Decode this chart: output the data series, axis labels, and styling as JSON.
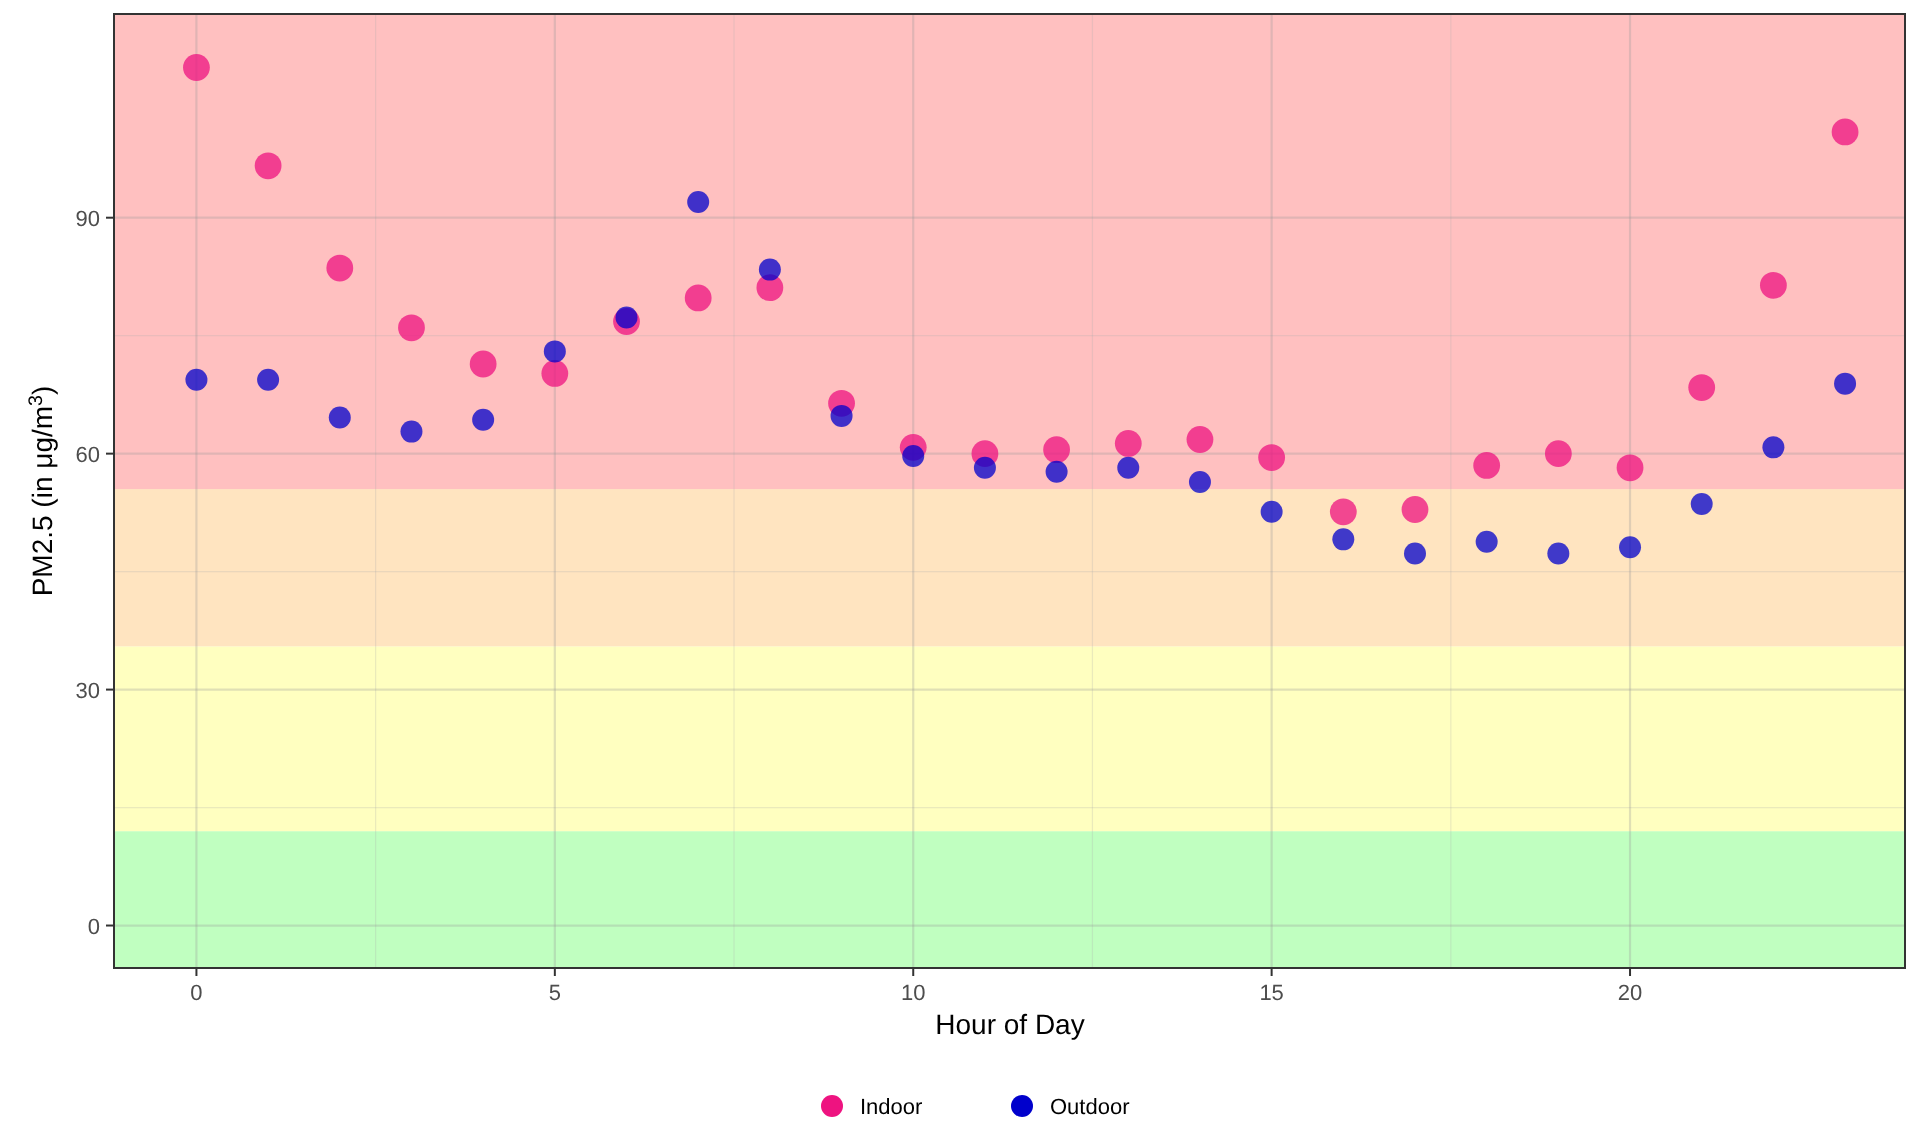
{
  "chart_data": {
    "type": "scatter",
    "xlabel": "Hour of Day",
    "ylabel": "PM2.5 (in μg/m$^{3}$)",
    "x": [
      0,
      1,
      2,
      3,
      4,
      5,
      6,
      7,
      8,
      9,
      10,
      11,
      12,
      13,
      14,
      15,
      16,
      17,
      18,
      19,
      20,
      21,
      22,
      23
    ],
    "series": [
      {
        "name": "Indoor",
        "color": "#ee1380",
        "values": [
          109.1,
          96.6,
          83.6,
          76.0,
          71.4,
          70.2,
          76.8,
          79.8,
          81.1,
          66.4,
          60.8,
          60.0,
          60.5,
          61.3,
          61.8,
          59.5,
          52.6,
          52.9,
          58.5,
          60.0,
          58.2,
          68.4,
          81.4,
          100.9
        ]
      },
      {
        "name": "Outdoor",
        "color": "#0000cc",
        "values": [
          69.4,
          69.4,
          64.6,
          62.8,
          64.3,
          73.0,
          77.3,
          92.0,
          83.4,
          64.8,
          59.7,
          58.2,
          57.7,
          58.2,
          56.4,
          52.6,
          49.1,
          47.3,
          48.8,
          47.3,
          48.1,
          53.6,
          60.8,
          68.9
        ]
      }
    ],
    "xlim": [
      -1.15,
      23.85
    ],
    "xticks": [
      0,
      5,
      10,
      15,
      20
    ],
    "ylim": [
      -5.4,
      115.9
    ],
    "yticks": [
      0,
      30,
      60,
      90
    ],
    "bands": [
      {
        "axis": "y",
        "from": -5.4,
        "to": 12,
        "color": "#c0ffc0"
      },
      {
        "axis": "y",
        "from": 12,
        "to": 35.5,
        "color": "#ffffc0"
      },
      {
        "axis": "y",
        "from": 35.5,
        "to": 55.5,
        "color": "#ffe4c0"
      },
      {
        "axis": "y",
        "from": 55.5,
        "to": 115.9,
        "color": "#ffc0c0"
      }
    ],
    "grid": true,
    "legend": "bottom",
    "marker": "circle"
  }
}
